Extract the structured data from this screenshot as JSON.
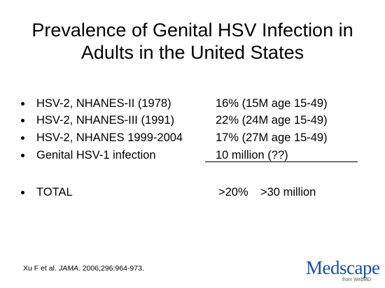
{
  "header": {
    "title_lines": [
      "Prevalence of Genital HSV Infection in",
      "Adults in the United States"
    ]
  },
  "bullets": [
    {
      "label": "HSV-2, NHANES-II (1978)",
      "value": "16% (15M age 15-49)"
    },
    {
      "label": "HSV-2, NHANES-III (1991)",
      "value": "22% (24M age 15-49)"
    },
    {
      "label": "HSV-2, NHANES 1999-2004",
      "value": "17% (27M age 15-49)"
    },
    {
      "label": "Genital HSV-1 infection",
      "value": "10 million (??)"
    }
  ],
  "total": {
    "label": "TOTAL",
    "percent": ">20%",
    "count": ">30 million"
  },
  "citation": {
    "authors": "Xu F et al.",
    "journal": "JAMA",
    "details": ". 2006;296:964-973."
  },
  "logo": {
    "name": "Medscape",
    "tagline": "from WebMD"
  }
}
